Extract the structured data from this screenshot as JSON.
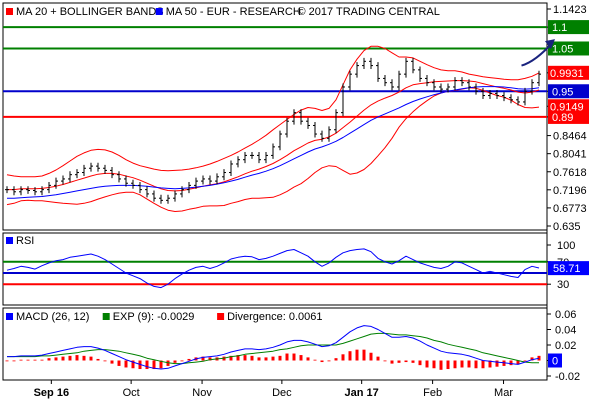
{
  "chart_data": [
    {
      "type": "line",
      "panel": "price",
      "legend": [
        {
          "name": "MA 20 + BOLLINGER BANDS",
          "color": "#ff0000"
        },
        {
          "name": "MA 50 - EUR - RESEARCH",
          "color": "#0000ff"
        }
      ],
      "copyright": "© 2017 TRADING CENTRAL",
      "y_ticks": [
        "1.1423",
        "1.1",
        "1.05",
        "0.9931",
        "0.95",
        "0.9149",
        "0.89",
        "0.8464",
        "0.8041",
        "0.7618",
        "0.7196",
        "0.6773",
        "0.635"
      ],
      "ylim": [
        0.635,
        1.1423
      ],
      "levels": [
        {
          "value": 1.1,
          "label": "1.1",
          "color": "#008000"
        },
        {
          "value": 1.05,
          "label": "1.05",
          "color": "#008000"
        },
        {
          "value": 0.95,
          "label": "0.95",
          "color": "#0000cc"
        },
        {
          "value": 0.89,
          "label": "0.89",
          "color": "#ff0000"
        }
      ],
      "value_tags": [
        {
          "value": 0.9931,
          "label": "0.9931",
          "color": "#ff0000"
        },
        {
          "value": 0.9149,
          "label": "0.9149",
          "color": "#ff0000"
        }
      ],
      "arrow": {
        "from_x": 73.5,
        "from_y": 1.01,
        "to_x": 78,
        "to_y": 1.065
      },
      "close": [
        0.72,
        0.715,
        0.72,
        0.718,
        0.715,
        0.72,
        0.73,
        0.74,
        0.745,
        0.755,
        0.76,
        0.77,
        0.775,
        0.77,
        0.765,
        0.755,
        0.745,
        0.735,
        0.73,
        0.72,
        0.71,
        0.7,
        0.695,
        0.7,
        0.71,
        0.72,
        0.73,
        0.74,
        0.745,
        0.74,
        0.75,
        0.76,
        0.78,
        0.79,
        0.8,
        0.8,
        0.79,
        0.8,
        0.82,
        0.85,
        0.88,
        0.9,
        0.88,
        0.87,
        0.85,
        0.84,
        0.86,
        0.9,
        0.96,
        0.99,
        1.01,
        1.02,
        1.01,
        0.98,
        0.97,
        0.96,
        0.99,
        1.02,
        1.0,
        0.98,
        0.97,
        0.96,
        0.955,
        0.96,
        0.975,
        0.97,
        0.96,
        0.95,
        0.94,
        0.945,
        0.94,
        0.935,
        0.93,
        0.925,
        0.95,
        0.97,
        0.99
      ],
      "ma20": [
        0.72,
        0.72,
        0.722,
        0.722,
        0.722,
        0.723,
        0.725,
        0.728,
        0.732,
        0.737,
        0.742,
        0.747,
        0.752,
        0.756,
        0.758,
        0.758,
        0.756,
        0.752,
        0.748,
        0.742,
        0.735,
        0.728,
        0.722,
        0.718,
        0.717,
        0.718,
        0.721,
        0.724,
        0.728,
        0.731,
        0.734,
        0.738,
        0.744,
        0.75,
        0.757,
        0.763,
        0.768,
        0.774,
        0.781,
        0.79,
        0.8,
        0.811,
        0.82,
        0.829,
        0.835,
        0.838,
        0.843,
        0.852,
        0.865,
        0.878,
        0.892,
        0.906,
        0.918,
        0.927,
        0.934,
        0.94,
        0.948,
        0.958,
        0.965,
        0.968,
        0.97,
        0.972,
        0.973,
        0.974,
        0.975,
        0.975,
        0.974,
        0.972,
        0.968,
        0.964,
        0.96,
        0.957,
        0.953,
        0.948,
        0.946,
        0.948,
        0.953
      ],
      "upper": [
        0.755,
        0.752,
        0.75,
        0.75,
        0.75,
        0.752,
        0.758,
        0.766,
        0.776,
        0.787,
        0.798,
        0.806,
        0.812,
        0.814,
        0.813,
        0.808,
        0.8,
        0.79,
        0.782,
        0.776,
        0.772,
        0.768,
        0.765,
        0.764,
        0.765,
        0.766,
        0.768,
        0.771,
        0.775,
        0.78,
        0.786,
        0.793,
        0.8,
        0.808,
        0.817,
        0.826,
        0.836,
        0.847,
        0.86,
        0.872,
        0.884,
        0.896,
        0.906,
        0.912,
        0.91,
        0.905,
        0.91,
        0.93,
        0.965,
        1.0,
        1.025,
        1.045,
        1.055,
        1.055,
        1.05,
        1.04,
        1.03,
        1.03,
        1.028,
        1.02,
        1.012,
        1.005,
        1.0,
        0.998,
        0.998,
        0.995,
        0.99,
        0.987,
        0.984,
        0.982,
        0.98,
        0.978,
        0.977,
        0.977,
        0.98,
        0.985,
        0.993
      ],
      "lower": [
        0.685,
        0.688,
        0.694,
        0.695,
        0.694,
        0.694,
        0.692,
        0.69,
        0.688,
        0.687,
        0.686,
        0.688,
        0.692,
        0.698,
        0.703,
        0.708,
        0.712,
        0.714,
        0.714,
        0.708,
        0.698,
        0.688,
        0.679,
        0.672,
        0.669,
        0.67,
        0.674,
        0.677,
        0.681,
        0.682,
        0.682,
        0.683,
        0.688,
        0.692,
        0.697,
        0.7,
        0.7,
        0.701,
        0.702,
        0.708,
        0.716,
        0.726,
        0.734,
        0.746,
        0.76,
        0.771,
        0.776,
        0.774,
        0.765,
        0.756,
        0.759,
        0.767,
        0.781,
        0.799,
        0.818,
        0.84,
        0.866,
        0.886,
        0.902,
        0.916,
        0.928,
        0.939,
        0.946,
        0.95,
        0.952,
        0.955,
        0.958,
        0.957,
        0.952,
        0.946,
        0.94,
        0.936,
        0.929,
        0.919,
        0.912,
        0.911,
        0.913
      ],
      "ma50": [
        0.7,
        0.7,
        0.701,
        0.702,
        0.703,
        0.704,
        0.706,
        0.708,
        0.711,
        0.714,
        0.717,
        0.72,
        0.723,
        0.726,
        0.728,
        0.729,
        0.73,
        0.73,
        0.73,
        0.729,
        0.728,
        0.726,
        0.724,
        0.723,
        0.722,
        0.723,
        0.724,
        0.726,
        0.728,
        0.73,
        0.733,
        0.736,
        0.74,
        0.744,
        0.749,
        0.754,
        0.758,
        0.763,
        0.769,
        0.776,
        0.784,
        0.792,
        0.8,
        0.808,
        0.815,
        0.82,
        0.826,
        0.833,
        0.842,
        0.852,
        0.862,
        0.872,
        0.882,
        0.89,
        0.897,
        0.904,
        0.911,
        0.919,
        0.926,
        0.932,
        0.937,
        0.942,
        0.946,
        0.95,
        0.953,
        0.956,
        0.958,
        0.96,
        0.961,
        0.961,
        0.961,
        0.96,
        0.958,
        0.956,
        0.955,
        0.956,
        0.958
      ]
    },
    {
      "type": "line",
      "panel": "rsi",
      "legend": [
        {
          "name": "RSI",
          "color": "#0000ff"
        }
      ],
      "y_ticks": [
        "100",
        "70",
        "30"
      ],
      "ylim": [
        0,
        100
      ],
      "levels": [
        {
          "value": 70,
          "color": "#008000"
        },
        {
          "value": 50,
          "color": "#0000cc"
        },
        {
          "value": 30,
          "color": "#ff0000"
        }
      ],
      "value_tags": [
        {
          "value": 58.71,
          "label": "58.71",
          "color": "#0000ff"
        }
      ],
      "values": [
        55,
        58,
        62,
        60,
        57,
        63,
        68,
        72,
        74,
        78,
        80,
        82,
        84,
        80,
        74,
        66,
        58,
        50,
        45,
        40,
        32,
        26,
        24,
        30,
        40,
        48,
        55,
        60,
        62,
        58,
        62,
        68,
        75,
        78,
        80,
        79,
        74,
        76,
        80,
        85,
        90,
        92,
        86,
        80,
        70,
        62,
        68,
        78,
        86,
        90,
        92,
        93,
        88,
        76,
        70,
        66,
        72,
        80,
        74,
        68,
        64,
        60,
        58,
        62,
        70,
        68,
        62,
        56,
        50,
        53,
        50,
        47,
        44,
        42,
        56,
        62,
        59
      ]
    },
    {
      "type": "bar",
      "panel": "macd",
      "legend": [
        {
          "name": "MACD (26, 12)",
          "color": "#0000ff"
        },
        {
          "name": "EXP (9): -0.0029",
          "color": "#008000"
        },
        {
          "name": "Divergence: 0.0061",
          "color": "#ff0000"
        }
      ],
      "y_ticks": [
        "0.06",
        "0.04",
        "0.02",
        "0",
        "-0.02"
      ],
      "ylim": [
        -0.02,
        0.06
      ],
      "value_tags": [
        {
          "value": 0,
          "label": "0",
          "color": "#0000ff"
        }
      ],
      "macd": [
        0.005,
        0.005,
        0.006,
        0.006,
        0.006,
        0.007,
        0.009,
        0.011,
        0.013,
        0.015,
        0.017,
        0.018,
        0.018,
        0.016,
        0.013,
        0.009,
        0.005,
        0.001,
        -0.002,
        -0.005,
        -0.008,
        -0.01,
        -0.011,
        -0.01,
        -0.007,
        -0.004,
        -0.001,
        0.002,
        0.004,
        0.005,
        0.006,
        0.008,
        0.011,
        0.013,
        0.015,
        0.015,
        0.014,
        0.015,
        0.017,
        0.02,
        0.024,
        0.026,
        0.026,
        0.024,
        0.021,
        0.018,
        0.019,
        0.023,
        0.03,
        0.037,
        0.042,
        0.045,
        0.044,
        0.04,
        0.035,
        0.03,
        0.03,
        0.031,
        0.029,
        0.025,
        0.02,
        0.016,
        0.012,
        0.01,
        0.009,
        0.008,
        0.006,
        0.003,
        0.0,
        -0.001,
        -0.002,
        -0.003,
        -0.004,
        -0.005,
        -0.002,
        0.001,
        0.003
      ],
      "signal": [
        0.005,
        0.005,
        0.005,
        0.005,
        0.005,
        0.006,
        0.006,
        0.007,
        0.008,
        0.009,
        0.01,
        0.012,
        0.013,
        0.014,
        0.014,
        0.013,
        0.012,
        0.01,
        0.008,
        0.006,
        0.003,
        0.001,
        -0.001,
        -0.003,
        -0.004,
        -0.004,
        -0.003,
        -0.002,
        -0.001,
        0.001,
        0.002,
        0.003,
        0.005,
        0.006,
        0.008,
        0.009,
        0.01,
        0.011,
        0.012,
        0.014,
        0.015,
        0.017,
        0.019,
        0.02,
        0.02,
        0.02,
        0.02,
        0.02,
        0.022,
        0.025,
        0.028,
        0.031,
        0.034,
        0.035,
        0.035,
        0.034,
        0.033,
        0.033,
        0.032,
        0.031,
        0.029,
        0.026,
        0.024,
        0.021,
        0.019,
        0.017,
        0.015,
        0.013,
        0.01,
        0.008,
        0.006,
        0.004,
        0.002,
        0.0,
        -0.002,
        -0.003,
        -0.003
      ],
      "divergence": [
        0.0,
        0.0,
        0.001,
        0.001,
        0.001,
        0.001,
        0.003,
        0.004,
        0.005,
        0.006,
        0.007,
        0.006,
        0.005,
        0.002,
        -0.001,
        -0.004,
        -0.007,
        -0.009,
        -0.01,
        -0.011,
        -0.011,
        -0.011,
        -0.01,
        -0.007,
        -0.003,
        0.0,
        0.002,
        0.004,
        0.005,
        0.004,
        0.004,
        0.005,
        0.006,
        0.007,
        0.007,
        0.006,
        0.004,
        0.004,
        0.005,
        0.006,
        0.009,
        0.009,
        0.007,
        0.004,
        0.001,
        -0.002,
        -0.001,
        0.003,
        0.008,
        0.012,
        0.014,
        0.014,
        0.01,
        0.005,
        0.0,
        -0.004,
        -0.003,
        -0.002,
        -0.003,
        -0.006,
        -0.009,
        -0.01,
        -0.012,
        -0.011,
        -0.01,
        -0.009,
        -0.009,
        -0.01,
        -0.01,
        -0.009,
        -0.008,
        -0.007,
        -0.006,
        -0.005,
        0.0,
        0.004,
        0.006
      ]
    }
  ],
  "x_axis": {
    "labels": [
      {
        "text": "Sep 16",
        "index": 5,
        "bold": true
      },
      {
        "text": "Oct",
        "index": 14,
        "bold": false
      },
      {
        "text": "Nov",
        "index": 22,
        "bold": false
      },
      {
        "text": "Dec",
        "index": 31,
        "bold": false
      },
      {
        "text": "Jan 17",
        "index": 40,
        "bold": true
      },
      {
        "text": "Feb",
        "index": 48,
        "bold": false
      },
      {
        "text": "Mar",
        "index": 56,
        "bold": false
      }
    ]
  }
}
